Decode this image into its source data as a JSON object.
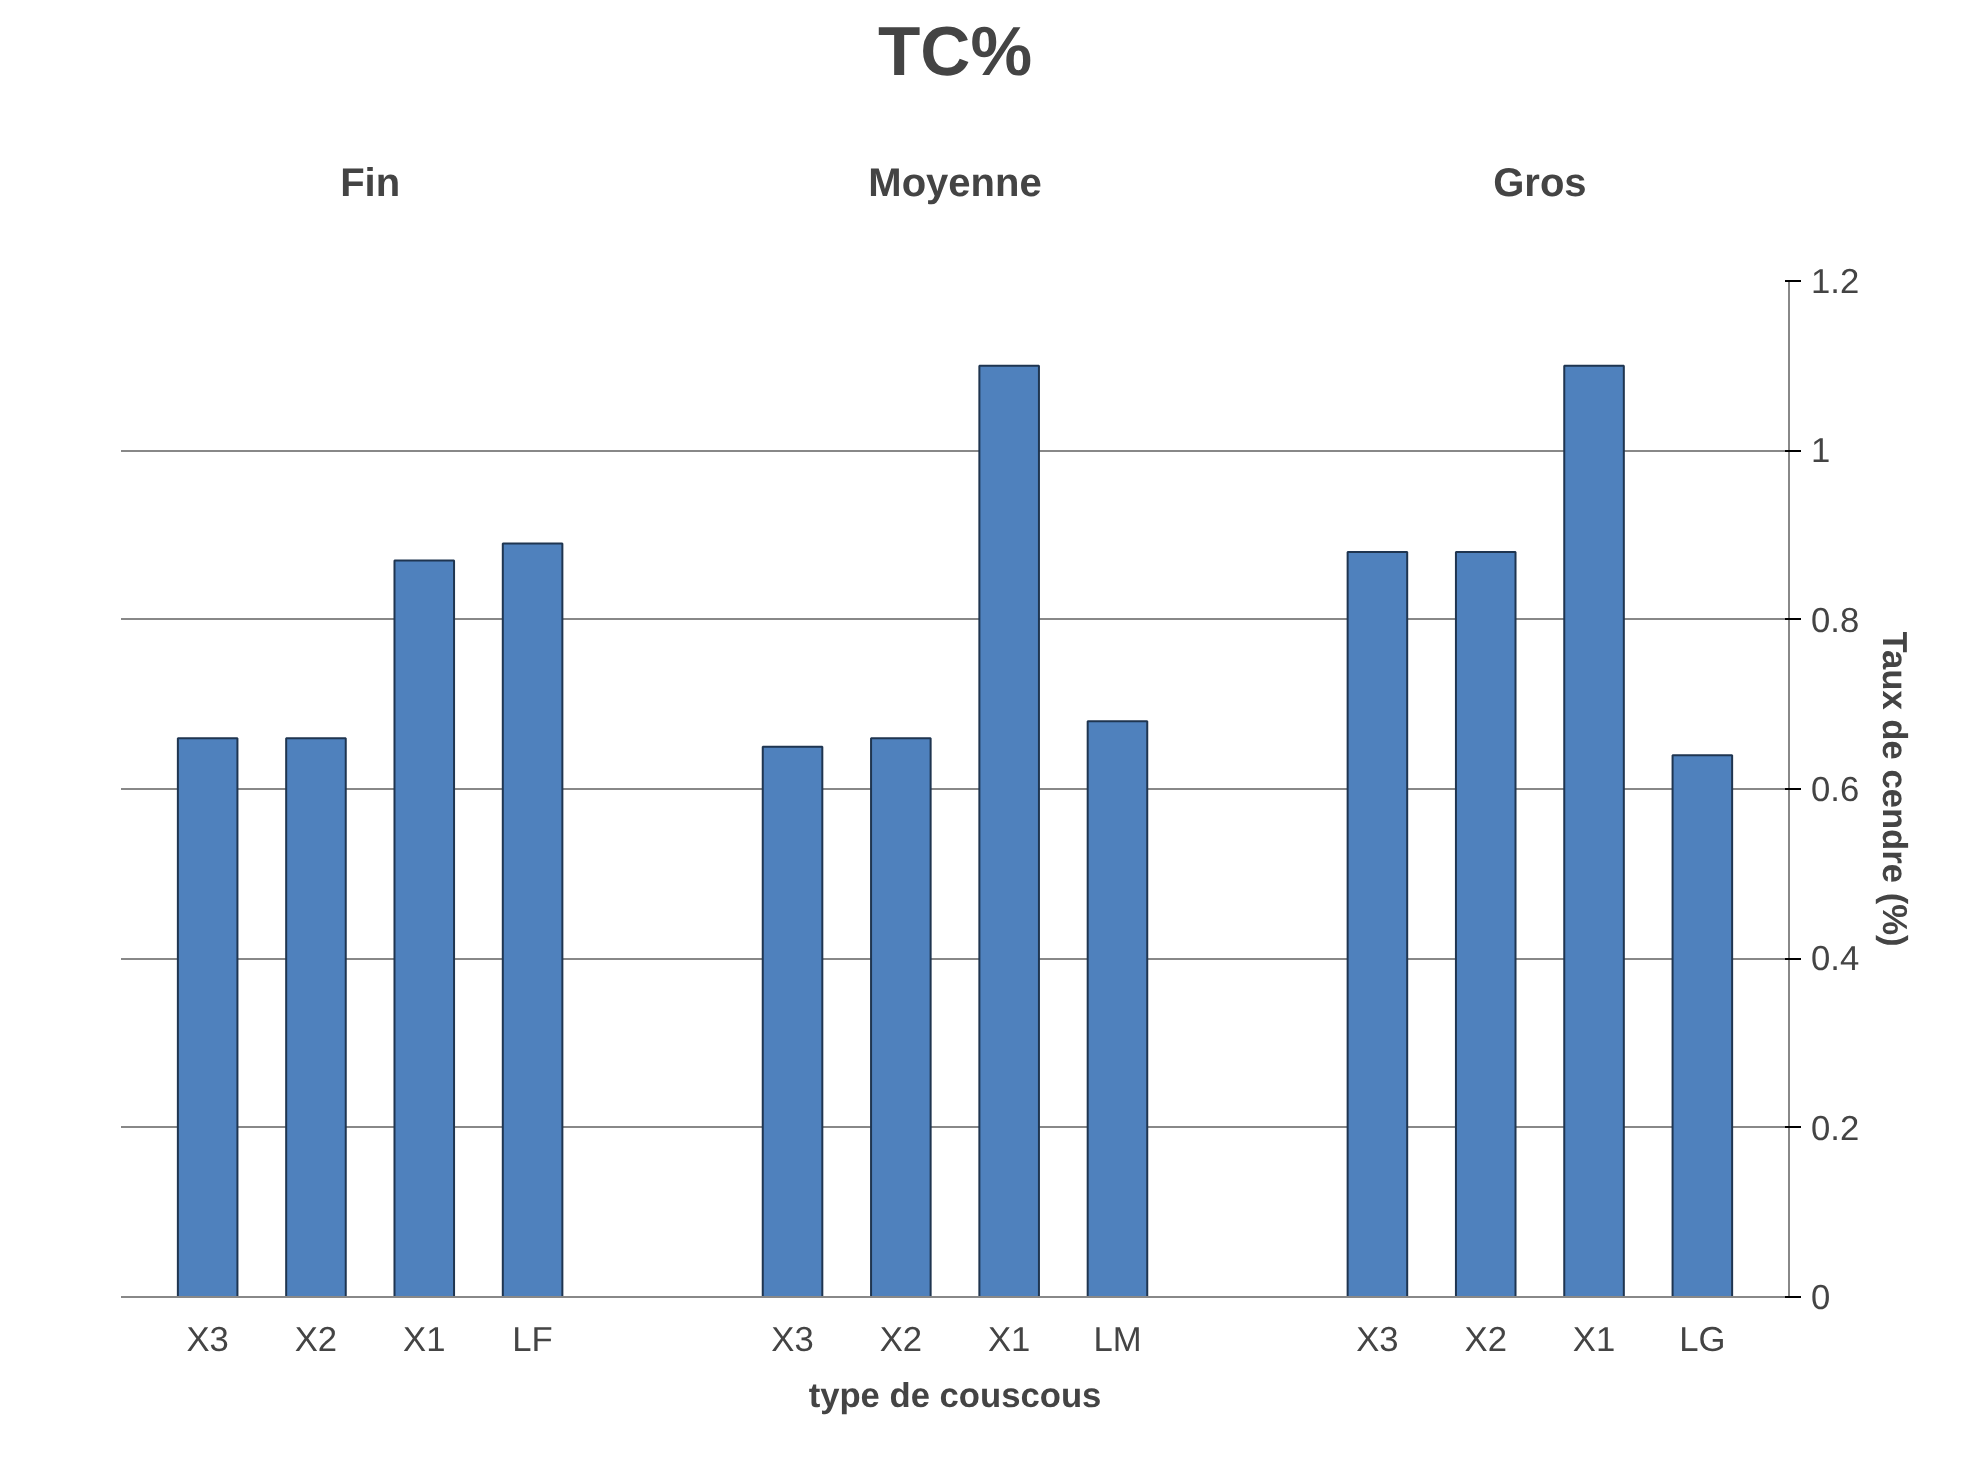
{
  "chart_data": {
    "type": "bar",
    "title": "TC%",
    "xlabel": "type de couscous",
    "ylabel": "Taux de cendre (%)",
    "categories": [
      "X3",
      "X2",
      "X1",
      "LF",
      "X3",
      "X2",
      "X1",
      "LM",
      "X3",
      "X2",
      "X1",
      "LG"
    ],
    "values": [
      0.66,
      0.66,
      0.87,
      0.89,
      0.65,
      0.66,
      1.1,
      0.68,
      0.88,
      0.88,
      1.1,
      0.64
    ],
    "color": "#4f81bd",
    "annotations": [
      "Fin",
      "Moyenne",
      "Gros"
    ],
    "ylim": [
      0,
      1.2
    ],
    "yticks": [
      0,
      0.2,
      0.4,
      0.6,
      0.8,
      1,
      1.2
    ],
    "grid": "y"
  }
}
